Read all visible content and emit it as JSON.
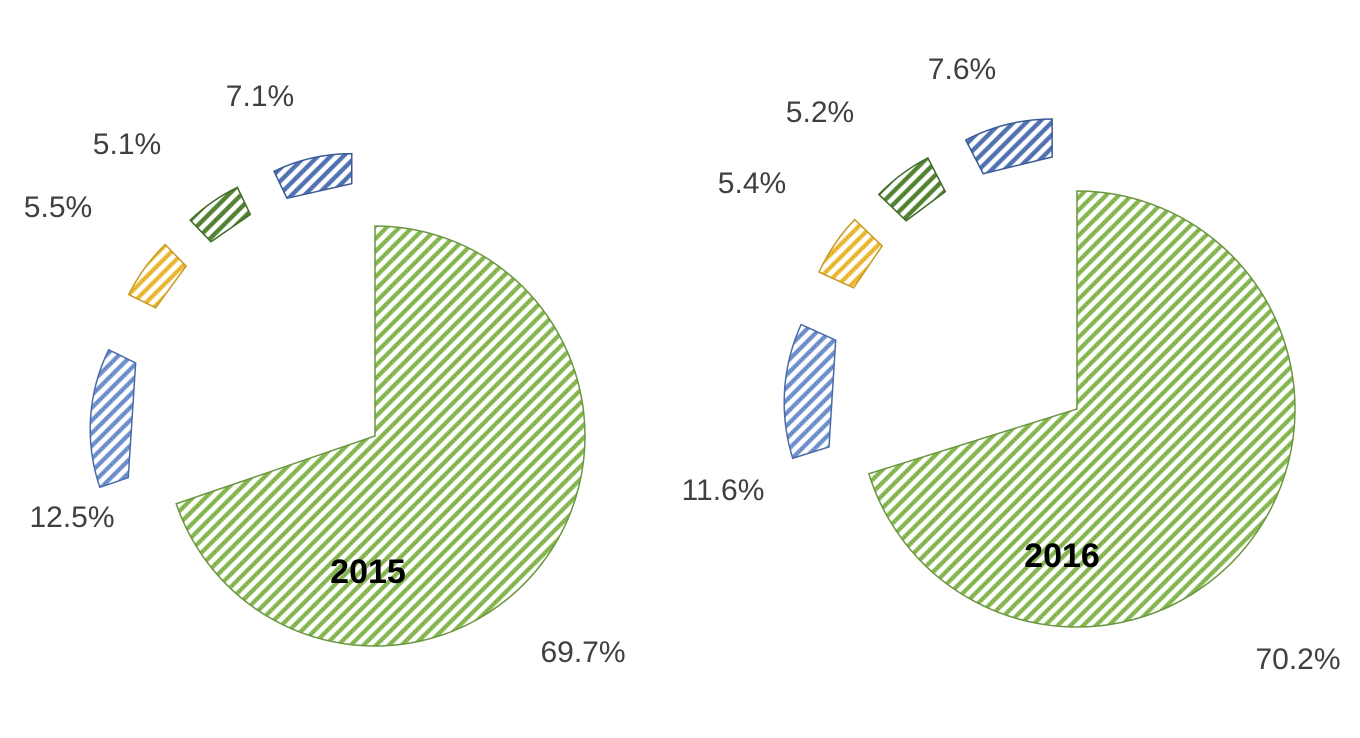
{
  "chart_data": [
    {
      "type": "pie",
      "title": "2015",
      "slices": [
        {
          "value": 69.7,
          "label": "69.7%",
          "color": "#8fbf5a",
          "edge": "#6a9640"
        },
        {
          "value": 12.5,
          "label": "12.5%",
          "color": "#7b9bd4",
          "edge": "#4a6aa8"
        },
        {
          "value": 5.5,
          "label": "5.5%",
          "color": "#f0c040",
          "edge": "#c89a20"
        },
        {
          "value": 5.1,
          "label": "5.1%",
          "color": "#5a8a3a",
          "edge": "#3f6a28"
        },
        {
          "value": 7.1,
          "label": "7.1%",
          "color": "#5a7ab8",
          "edge": "#3a5a98"
        }
      ]
    },
    {
      "type": "pie",
      "title": "2016",
      "slices": [
        {
          "value": 70.2,
          "label": "70.2%",
          "color": "#8fbf5a",
          "edge": "#6a9640"
        },
        {
          "value": 11.6,
          "label": "11.6%",
          "color": "#7b9bd4",
          "edge": "#4a6aa8"
        },
        {
          "value": 5.4,
          "label": "5.4%",
          "color": "#f0c040",
          "edge": "#c89a20"
        },
        {
          "value": 5.2,
          "label": "5.2%",
          "color": "#5a8a3a",
          "edge": "#3f6a28"
        },
        {
          "value": 7.6,
          "label": "7.6%",
          "color": "#5a7ab8",
          "edge": "#3a5a98"
        }
      ]
    }
  ]
}
